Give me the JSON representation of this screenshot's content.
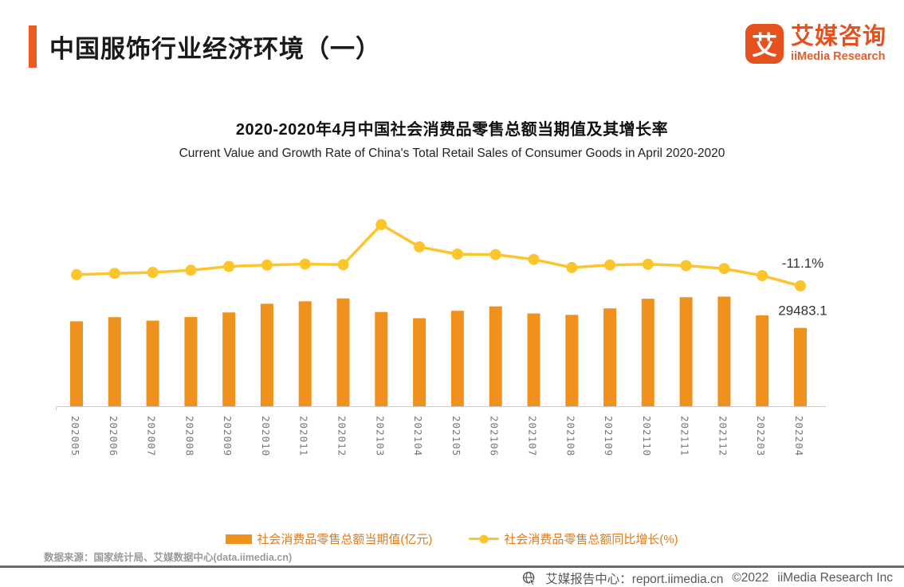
{
  "header": {
    "title": "中国服饰行业经济环境（一）",
    "logo": {
      "mark": "艾",
      "name_cn": "艾媒咨询",
      "name_en": "iiMedia Research"
    }
  },
  "chart_data": {
    "type": "bar+line",
    "title": "2020-2020年4月中国社会消费品零售总额当期值及其增长率",
    "subtitle": "Current Value and Growth Rate of China's Total Retail Sales of Consumer Goods in April 2020-2020",
    "categories": [
      "202005",
      "202006",
      "202007",
      "202008",
      "202009",
      "202010",
      "202011",
      "202012",
      "202103",
      "202104",
      "202105",
      "202106",
      "202107",
      "202108",
      "202109",
      "202110",
      "202111",
      "202112",
      "202203",
      "202204"
    ],
    "series": [
      {
        "name": "社会消费品零售总额当期值(亿元)",
        "type": "bar",
        "values": [
          31973,
          33526,
          32203,
          33571,
          35295,
          38576,
          39514,
          40566,
          35484,
          33153,
          35945,
          37586,
          34925,
          34395,
          36833,
          40454,
          41043,
          41269,
          34233,
          29483.1
        ]
      },
      {
        "name": "社会消费品零售总额同比增长(%)",
        "type": "line",
        "values": [
          -2.8,
          -1.8,
          -1.1,
          0.5,
          3.3,
          4.3,
          5.0,
          4.6,
          34.2,
          17.7,
          12.4,
          12.1,
          8.5,
          2.5,
          4.4,
          4.9,
          3.9,
          1.7,
          -3.5,
          -11.1
        ]
      }
    ],
    "annotations": [
      {
        "text": "-11.1%",
        "target": "last_line_point"
      },
      {
        "text": "29483.1",
        "target": "last_bar_top"
      }
    ],
    "colors": {
      "bar": "#F0911E",
      "line": "#FCC52B",
      "accent": "#EE5A1E"
    },
    "grid": false,
    "y_axis_shown": false,
    "x_label_rotation": 90,
    "legend_position": "bottom"
  },
  "footer": {
    "source": "数据来源：国家统计局、艾媒数据中心(data.iimedia.cn)",
    "report_center": "艾媒报告中心：report.iimedia.cn",
    "copyright": "©2022",
    "company": "iiMedia Research Inc"
  }
}
